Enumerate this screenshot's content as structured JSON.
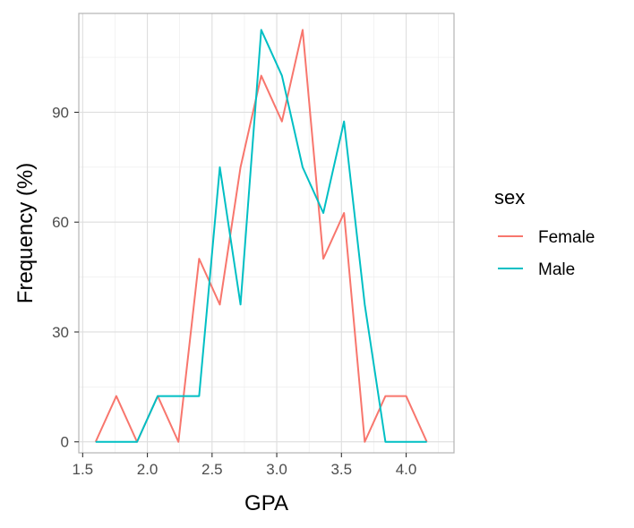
{
  "chart_data": {
    "type": "line",
    "xlabel": "GPA",
    "ylabel": "Frequency (%)",
    "xlim": [
      1.47,
      4.37
    ],
    "ylim": [
      -3,
      117
    ],
    "xticks": [
      1.5,
      2.0,
      2.5,
      3.0,
      3.5,
      4.0
    ],
    "xtick_labels": [
      "1.5",
      "2.0",
      "2.5",
      "3.0",
      "3.5",
      "4.0"
    ],
    "yticks": [
      0,
      30,
      60,
      90
    ],
    "ytick_labels": [
      "0",
      "30",
      "60",
      "90"
    ],
    "grid": true,
    "legend": {
      "title": "sex",
      "placement": "right"
    },
    "series": [
      {
        "name": "Female",
        "color": "#F8766D",
        "x": [
          1.6,
          1.76,
          1.92,
          2.08,
          2.24,
          2.4,
          2.56,
          2.72,
          2.88,
          3.04,
          3.2,
          3.36,
          3.52,
          3.68,
          3.84,
          4.0,
          4.16
        ],
        "y": [
          0,
          12.5,
          0,
          12.5,
          0,
          50,
          37.5,
          75,
          100,
          87.5,
          112.5,
          50,
          62.5,
          0,
          12.5,
          12.5,
          0
        ]
      },
      {
        "name": "Male",
        "color": "#00BFC4",
        "x": [
          1.6,
          1.76,
          1.92,
          2.08,
          2.24,
          2.4,
          2.56,
          2.72,
          2.88,
          3.04,
          3.2,
          3.36,
          3.52,
          3.68,
          3.84,
          4.0,
          4.16
        ],
        "y": [
          0,
          0,
          0,
          12.5,
          12.5,
          12.5,
          75,
          37.5,
          112.5,
          100,
          75,
          62.5,
          87.5,
          37.5,
          0,
          0,
          0
        ]
      }
    ]
  }
}
